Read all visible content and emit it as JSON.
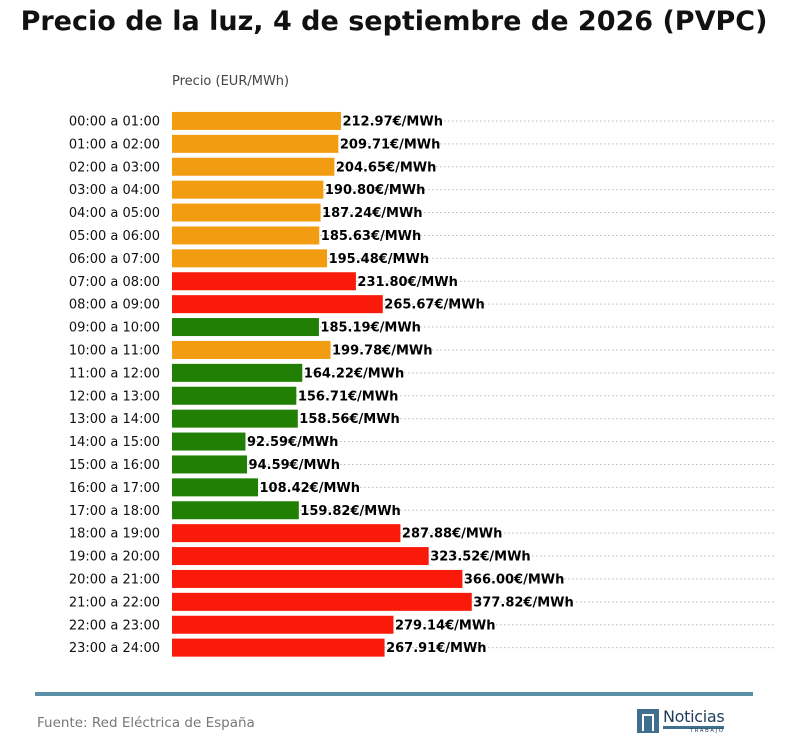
{
  "title": "Precio de la luz, 4 de septiembre de 2026 (PVPC)",
  "source": "Fuente: Red Eléctrica de España",
  "logo": {
    "name": "Noticias",
    "sub": "TRABAJO"
  },
  "colors": {
    "high": "#fa1a0a",
    "medium": "#f29c12",
    "low": "#217f03",
    "footer_line": "#5b8fa8",
    "grid": "#bbbbbb"
  },
  "chart_data": {
    "type": "bar",
    "orientation": "horizontal",
    "xlabel": "Precio (EUR/MWh)",
    "value_suffix": "€/MWh",
    "xlim": [
      0,
      760
    ],
    "grid": "dotted horizontal",
    "categories": [
      "00:00 a 01:00",
      "01:00 a 02:00",
      "02:00 a 03:00",
      "03:00 a 04:00",
      "04:00 a 05:00",
      "05:00 a 06:00",
      "06:00 a 07:00",
      "07:00 a 08:00",
      "08:00 a 09:00",
      "09:00 a 10:00",
      "10:00 a 11:00",
      "11:00 a 12:00",
      "12:00 a 13:00",
      "13:00 a 14:00",
      "14:00 a 15:00",
      "15:00 a 16:00",
      "16:00 a 17:00",
      "17:00 a 18:00",
      "18:00 a 19:00",
      "19:00 a 20:00",
      "20:00 a 21:00",
      "21:00 a 22:00",
      "22:00 a 23:00",
      "23:00 a 24:00"
    ],
    "values": [
      212.97,
      209.71,
      204.65,
      190.8,
      187.24,
      185.63,
      195.48,
      231.8,
      265.67,
      185.19,
      199.78,
      164.22,
      156.71,
      158.56,
      92.59,
      94.59,
      108.42,
      159.82,
      287.88,
      323.52,
      366.0,
      377.82,
      279.14,
      267.91
    ],
    "bar_levels": [
      "medium",
      "medium",
      "medium",
      "medium",
      "medium",
      "medium",
      "medium",
      "high",
      "high",
      "low",
      "medium",
      "low",
      "low",
      "low",
      "low",
      "low",
      "low",
      "low",
      "high",
      "high",
      "high",
      "high",
      "high",
      "high"
    ]
  }
}
